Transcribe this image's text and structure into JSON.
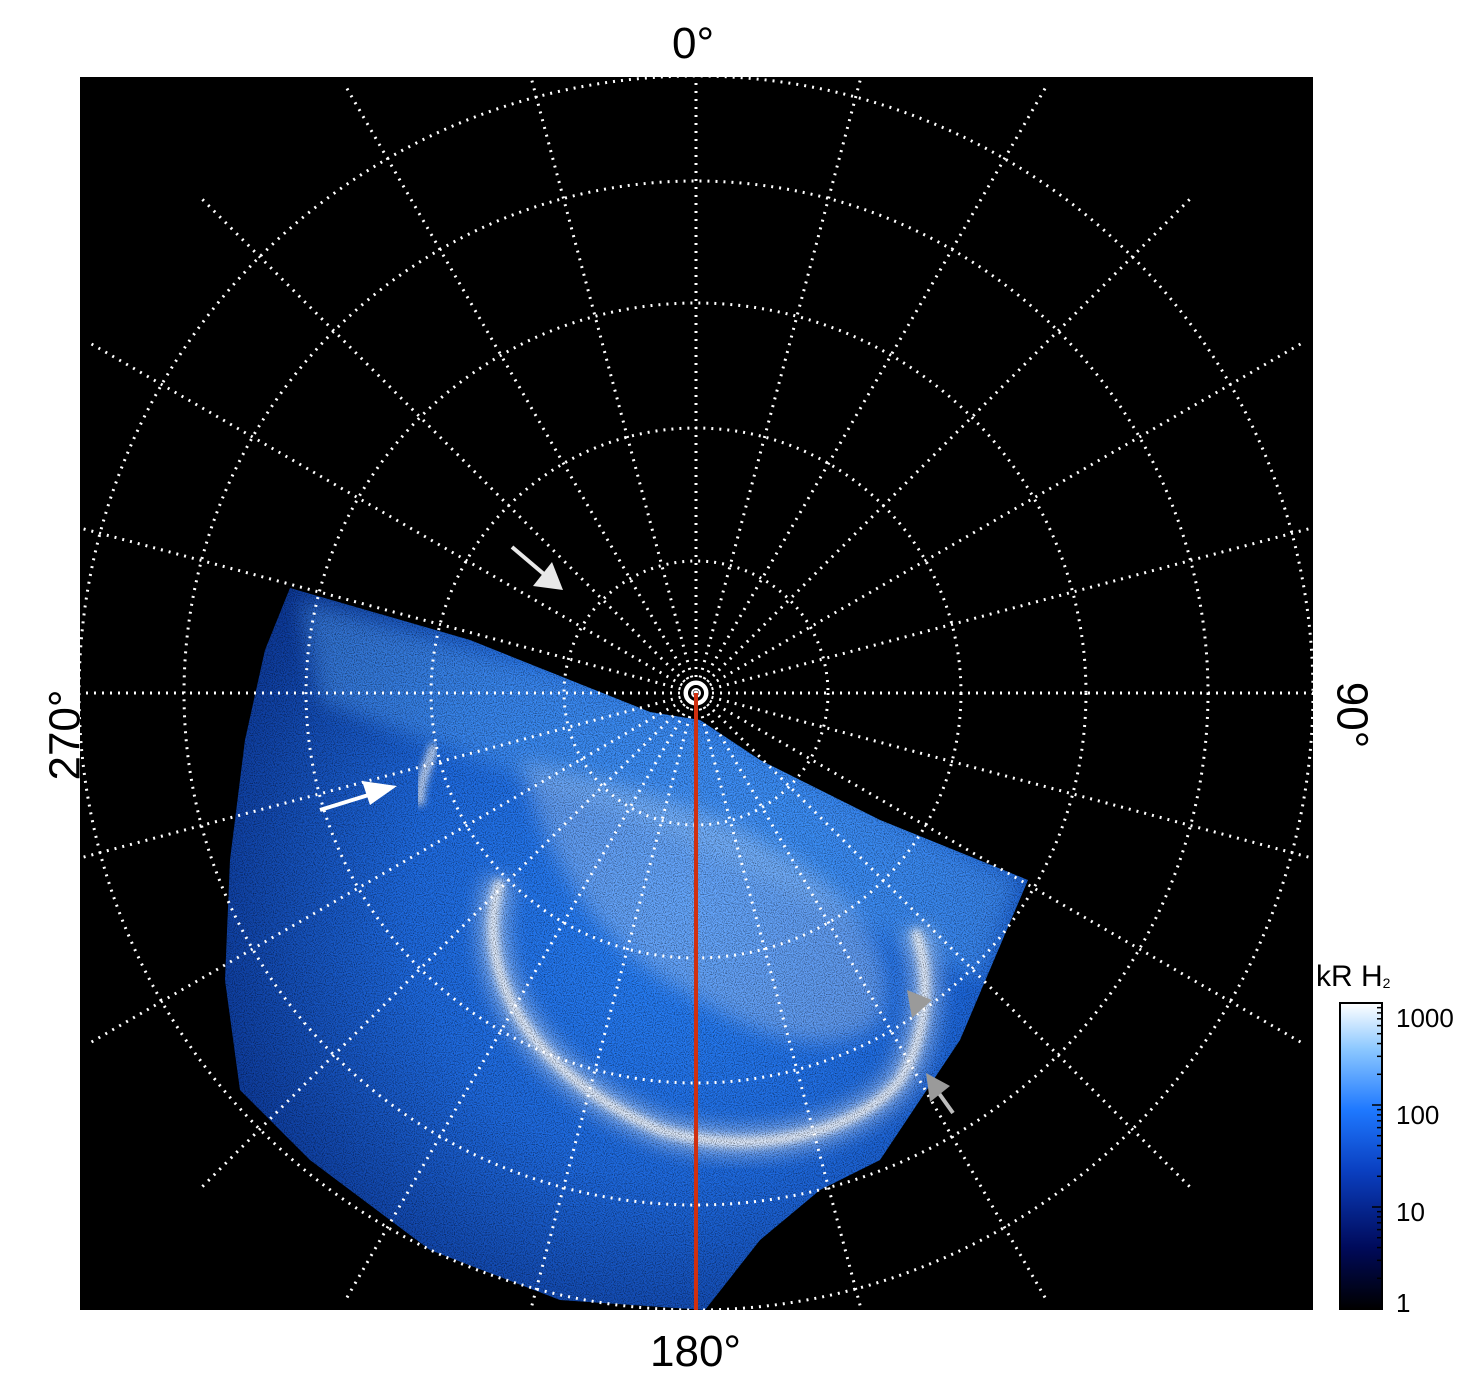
{
  "figure": {
    "longitude_labels": {
      "top": "0°",
      "bottom": "180°",
      "left": "270°",
      "right": "90°"
    },
    "colorbar": {
      "title_main": "kR H",
      "title_sub": "2",
      "scale": "log",
      "range": [
        1,
        1000
      ],
      "ticks": [
        "1000",
        "100",
        "10",
        "1"
      ],
      "colors": [
        "#000000",
        "#000a5a",
        "#0a3fc0",
        "#1e78ff",
        "#8cc8ff",
        "#ffffff"
      ]
    },
    "colors": {
      "background": "#000000",
      "grid": "#ffffff",
      "meridian_line": "#d03010",
      "arrow_white": "#ffffff",
      "arrow_gray": "#9a9a9a"
    },
    "grid": {
      "style": "dotted",
      "meridian_spacing_deg": 15
    },
    "arrows": [
      {
        "name": "arrow-upper-left",
        "color": "white"
      },
      {
        "name": "arrow-left",
        "color": "white"
      },
      {
        "name": "arrow-right-upper",
        "color": "gray"
      },
      {
        "name": "arrow-right-lower",
        "color": "gray"
      }
    ]
  }
}
